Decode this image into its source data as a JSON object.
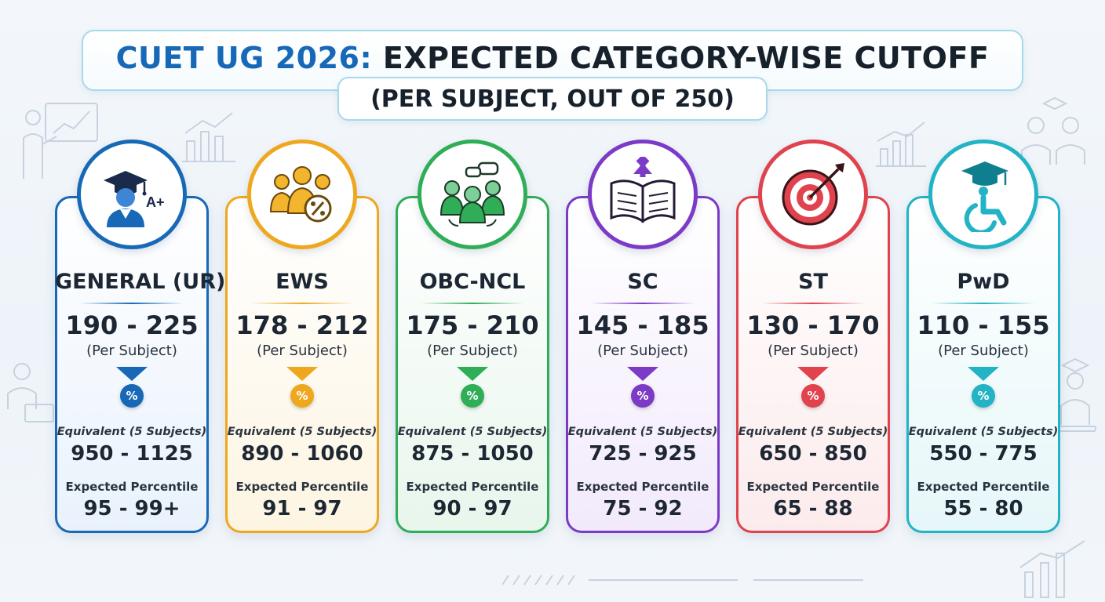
{
  "title": {
    "accent": "CUET UG 2026:",
    "main": " EXPECTED CATEGORY-WISE CUTOFF",
    "subtitle": "(PER SUBJECT, OUT OF 250)"
  },
  "labels": {
    "per_subject": "(Per Subject)",
    "equivalent": "Equivalent (5 Subjects)",
    "expected_percentile": "Expected Percentile",
    "percent_symbol": "%"
  },
  "categories": [
    {
      "name": "GENERAL (UR)",
      "range": "190 - 225",
      "equivalent": "950 - 1125",
      "percentile": "95 - 99+",
      "color": "#1769b7",
      "icon": "graduate-aplus-icon",
      "icon_text": "A+"
    },
    {
      "name": "EWS",
      "range": "178 - 212",
      "equivalent": "890 - 1060",
      "percentile": "91 - 97",
      "color": "#efa81e",
      "icon": "group-percent-icon"
    },
    {
      "name": "OBC-NCL",
      "range": "175 - 210",
      "equivalent": "875 - 1050",
      "percentile": "90 - 97",
      "color": "#2fae57",
      "icon": "team-discussion-icon"
    },
    {
      "name": "SC",
      "range": "145 - 185",
      "equivalent": "725 - 925",
      "percentile": "75 - 92",
      "color": "#7c3bc7",
      "icon": "book-arrow-up-icon"
    },
    {
      "name": "ST",
      "range": "130 - 170",
      "equivalent": "650 - 850",
      "percentile": "65 - 88",
      "color": "#e0434e",
      "icon": "target-arrow-icon"
    },
    {
      "name": "PwD",
      "range": "110 - 155",
      "equivalent": "550 - 775",
      "percentile": "55 - 80",
      "color": "#22b3c4",
      "icon": "graduate-wheelchair-icon"
    }
  ]
}
